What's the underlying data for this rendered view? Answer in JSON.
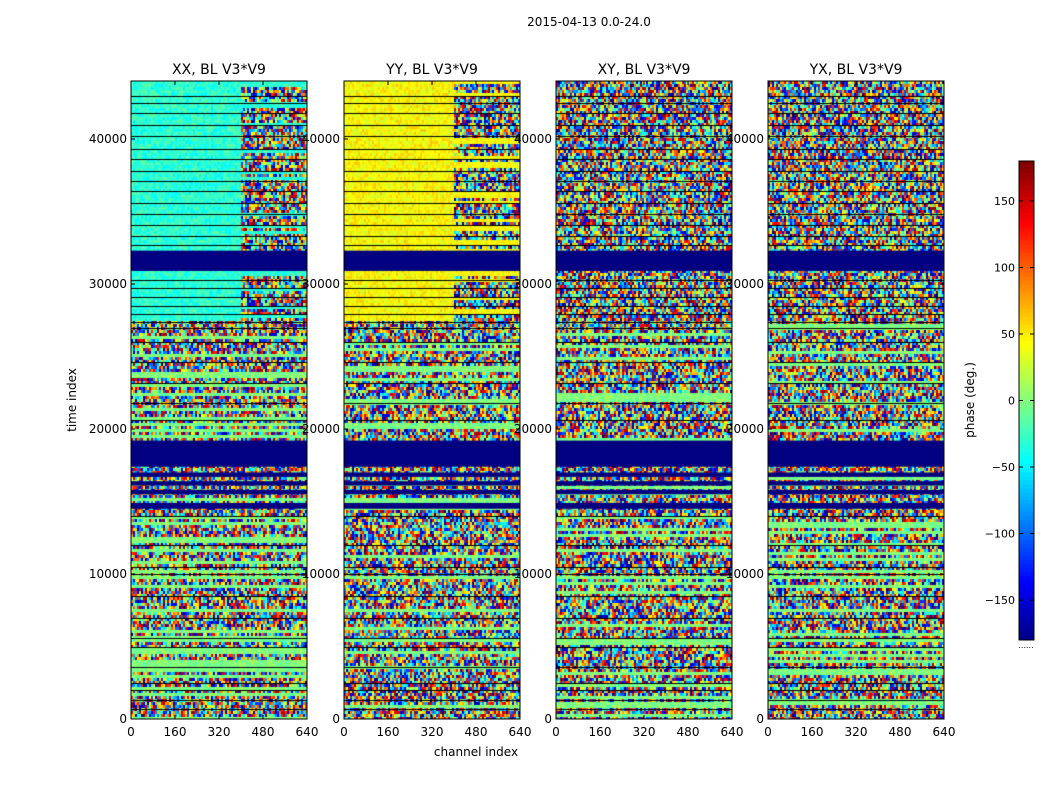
{
  "chart_data": {
    "type": "heatmap",
    "suptitle": "2015-04-13 0.0-24.0",
    "panels": [
      {
        "title": "XX, BL V3*V9",
        "base_phase_low_time": 0,
        "base_phase_high_time": -30,
        "high_channel_noise_from": 400
      },
      {
        "title": "YY, BL V3*V9",
        "base_phase_low_time": 0,
        "base_phase_high_time": 45,
        "high_channel_noise_from": 400
      },
      {
        "title": "XY, BL V3*V9",
        "base_phase_low_time": 0,
        "base_phase_high_time": 0,
        "high_channel_noise_from": 0
      },
      {
        "title": "YX, BL V3*V9",
        "base_phase_low_time": 0,
        "base_phase_high_time": 0,
        "high_channel_noise_from": 0
      }
    ],
    "xlabel": "channel index",
    "ylabel": "time index",
    "xlim": [
      0,
      640
    ],
    "ylim": [
      0,
      44000
    ],
    "xticks": [
      "0",
      "160",
      "320",
      "480",
      "640"
    ],
    "xtick_values": [
      0,
      160,
      320,
      480,
      640
    ],
    "yticks": [
      "0",
      "10000",
      "20000",
      "30000",
      "40000"
    ],
    "ytick_values": [
      0,
      10000,
      20000,
      30000,
      40000
    ],
    "colorbar": {
      "label": "phase (deg.)",
      "range": [
        -180,
        180
      ],
      "ticks": [
        "−150",
        "−100",
        "−50",
        "0",
        "50",
        "100",
        "150"
      ],
      "tick_values": [
        -150,
        -100,
        -50,
        0,
        50,
        100,
        150
      ],
      "colormap": "jet",
      "footer": "......"
    },
    "flagged_bands_time": [
      [
        30900,
        32300
      ],
      [
        17400,
        19200
      ],
      [
        14500,
        14900
      ],
      [
        15500,
        15800
      ],
      [
        16100,
        16400
      ],
      [
        16700,
        17000
      ]
    ],
    "black_row_lines_time": [
      43000,
      42500,
      41800,
      41000,
      40200,
      39300,
      38600,
      37800,
      37100,
      36400,
      35600,
      34800,
      34100,
      33300,
      32700,
      30300,
      29700,
      29100,
      28500,
      27900,
      27400,
      27000,
      26000,
      24600,
      23200,
      21800,
      20600,
      14000,
      12000,
      10500,
      10000,
      8500,
      7000,
      5600,
      5000,
      3600,
      2500,
      2000,
      1300,
      700
    ],
    "noise_seed": 7
  }
}
